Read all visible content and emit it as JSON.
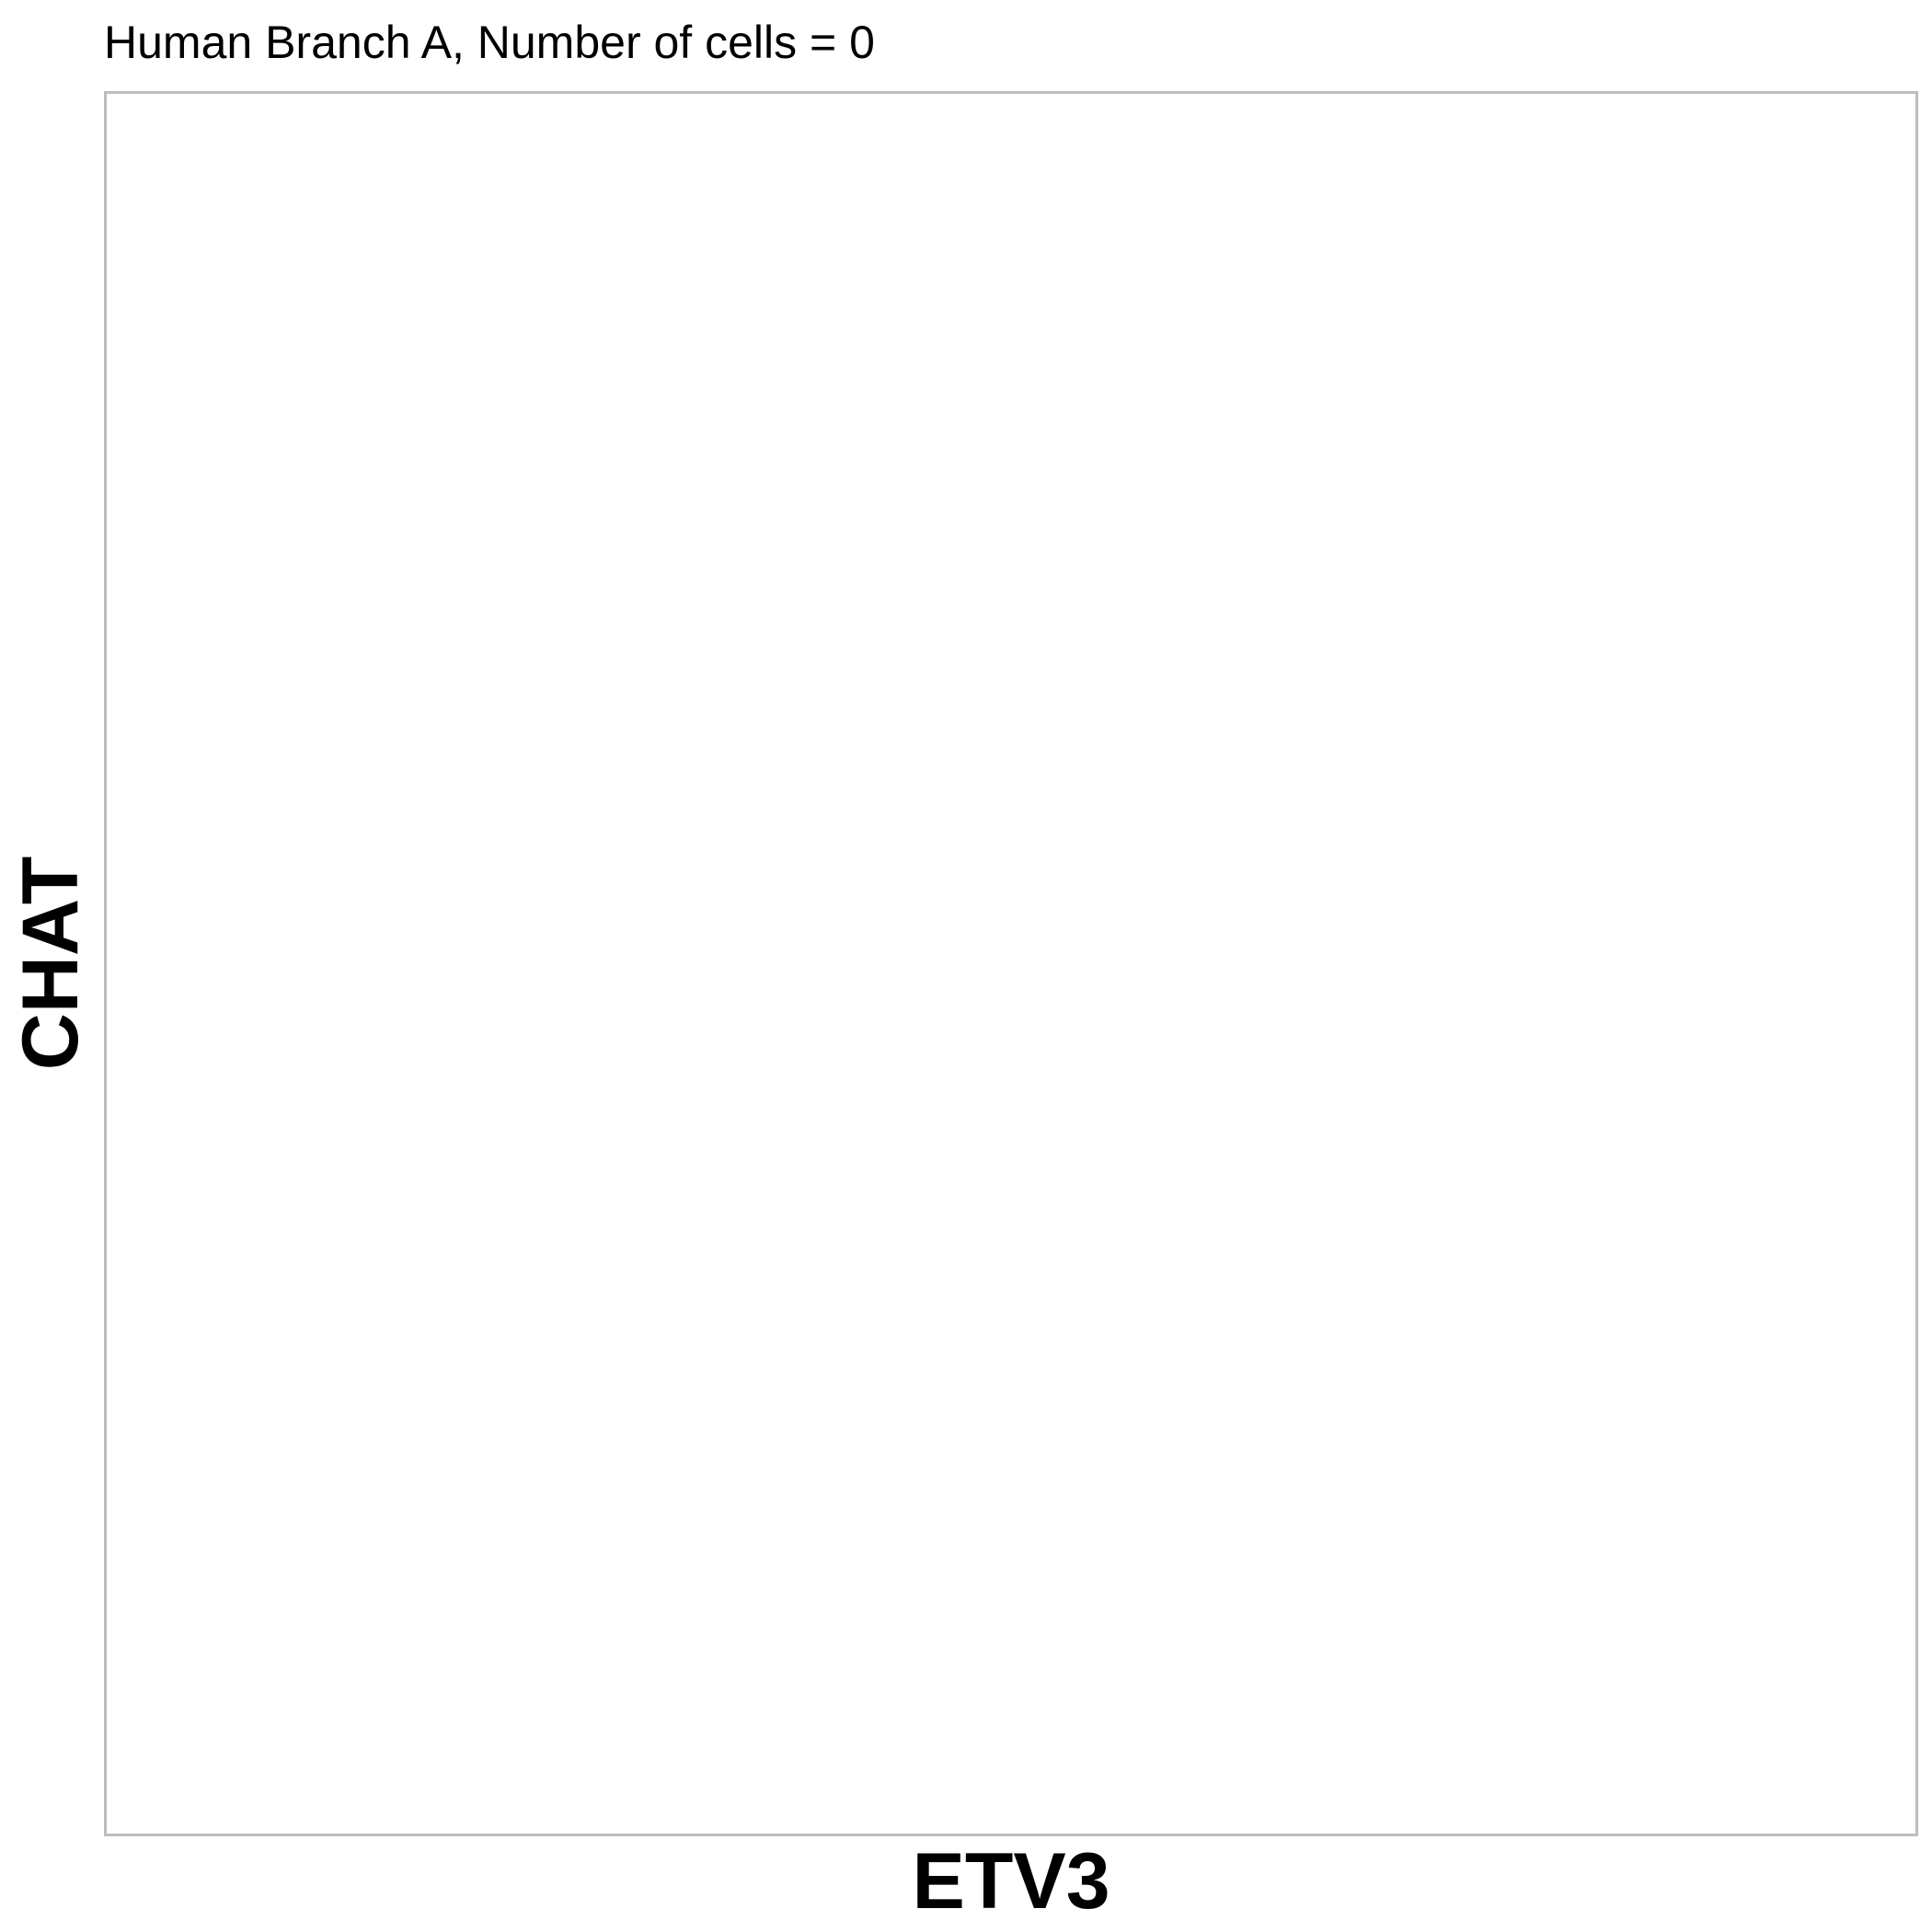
{
  "chart_data": {
    "type": "scatter",
    "title": "Human Branch A, Number of cells = 0",
    "xlabel": "ETV3",
    "ylabel": "CHAT",
    "series": [
      {
        "x": [],
        "y": []
      }
    ],
    "grid": false,
    "panel_border_color": "#bdbdbd",
    "background_color": "#ffffff"
  }
}
